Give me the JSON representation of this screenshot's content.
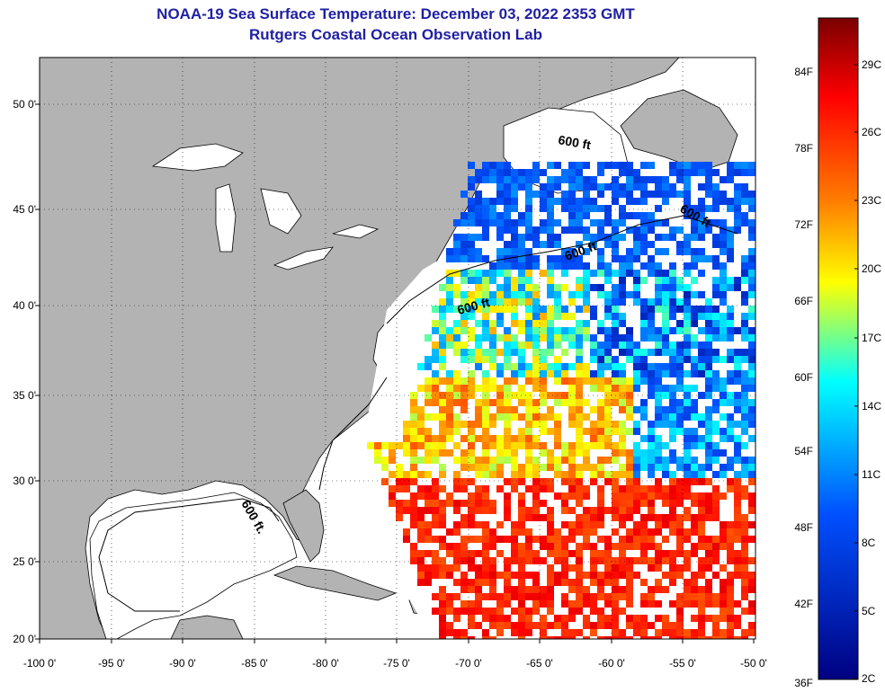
{
  "header": {
    "title": "NOAA-19 Sea Surface Temperature:  December 03, 2022 2353 GMT",
    "subtitle": "Rutgers Coastal Ocean Observation Lab"
  },
  "map": {
    "lon_ticks": [
      "-100 0'",
      "-95 0'",
      "-90 0'",
      "-85 0'",
      "-80 0'",
      "-75 0'",
      "-70 0'",
      "-65 0'",
      "-60 0'",
      "-55 0'",
      "-50 0'"
    ],
    "lat_ticks": [
      "50 0'",
      "45 0'",
      "40 0'",
      "35 0'",
      "30 0'",
      "25 0'",
      "20 0'"
    ],
    "contour_labels": [
      "600 ft",
      "600 ft",
      "600 ft",
      "600 ft",
      "600 ft."
    ],
    "colors": {
      "land": "#b3b3b3",
      "water": "#ffffff",
      "grid": "#000000"
    }
  },
  "colorbar": {
    "fahrenheit": [
      "84F",
      "78F",
      "72F",
      "66F",
      "60F",
      "54F",
      "48F",
      "42F",
      "36F"
    ],
    "celsius": [
      "29C",
      "26C",
      "23C",
      "20C",
      "17C",
      "14C",
      "11C",
      "8C",
      "5C",
      "2C"
    ],
    "gradient": [
      "#800000",
      "#ff0000",
      "#ff8000",
      "#ffff00",
      "#00ffff",
      "#0000ff",
      "#000080"
    ]
  }
}
